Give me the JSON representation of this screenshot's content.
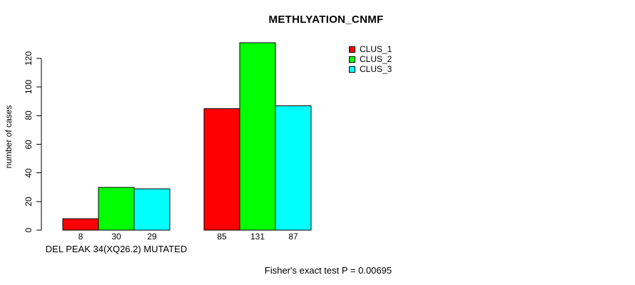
{
  "chart_data": {
    "type": "bar",
    "title": "METHLYATION_CNMF",
    "ylabel": "number of cases",
    "xlabel": "",
    "categories": [
      "DEL PEAK 34(XQ26.2) MUTATED",
      ""
    ],
    "series": [
      {
        "name": "CLUS_1",
        "color": "#ff0000",
        "values": [
          8,
          85
        ]
      },
      {
        "name": "CLUS_2",
        "color": "#00ff00",
        "values": [
          30,
          131
        ]
      },
      {
        "name": "CLUS_3",
        "color": "#00ffff",
        "values": [
          29,
          87
        ]
      }
    ],
    "yticks": [
      0,
      20,
      40,
      60,
      80,
      100,
      120
    ],
    "ylim": [
      0,
      131
    ],
    "bar_value_labels": true,
    "grid": false,
    "legend_position": "top-right",
    "axis_color": "#000000",
    "bar_border_color": "#000000",
    "annotation": "Fisher's exact test P = 0.00695"
  }
}
